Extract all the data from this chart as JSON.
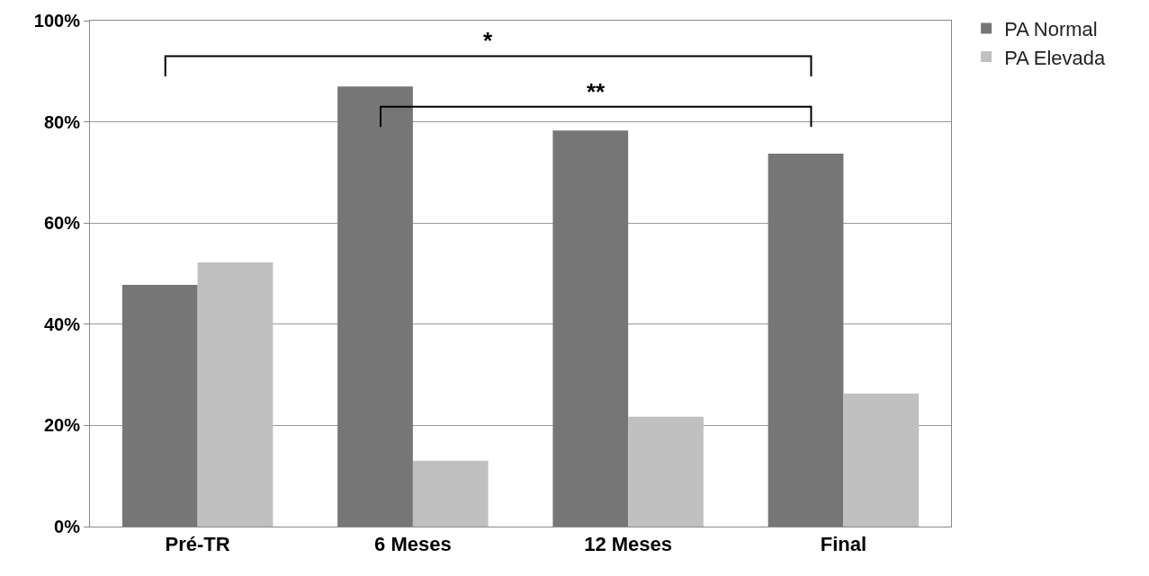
{
  "chart_data": {
    "type": "bar",
    "categories": [
      "Pré-TR",
      "6 Meses",
      "12 Meses",
      "Final"
    ],
    "series": [
      {
        "name": "PA Normal",
        "color": "#767676",
        "values": [
          47.8,
          87,
          78.3,
          73.7
        ]
      },
      {
        "name": "PA Elevada",
        "color": "#c0c0c0",
        "values": [
          52.2,
          13,
          21.7,
          26.3
        ]
      }
    ],
    "ylim": [
      0,
      100
    ],
    "yticks": [
      {
        "value": 0,
        "label": "0%"
      },
      {
        "value": 20,
        "label": "20%"
      },
      {
        "value": 40,
        "label": "40%"
      },
      {
        "value": 60,
        "label": "60%"
      },
      {
        "value": 80,
        "label": "80%"
      },
      {
        "value": 100,
        "label": "100%"
      }
    ],
    "grid": "y",
    "legend": "top right",
    "annotations": [
      "*",
      "**"
    ]
  }
}
